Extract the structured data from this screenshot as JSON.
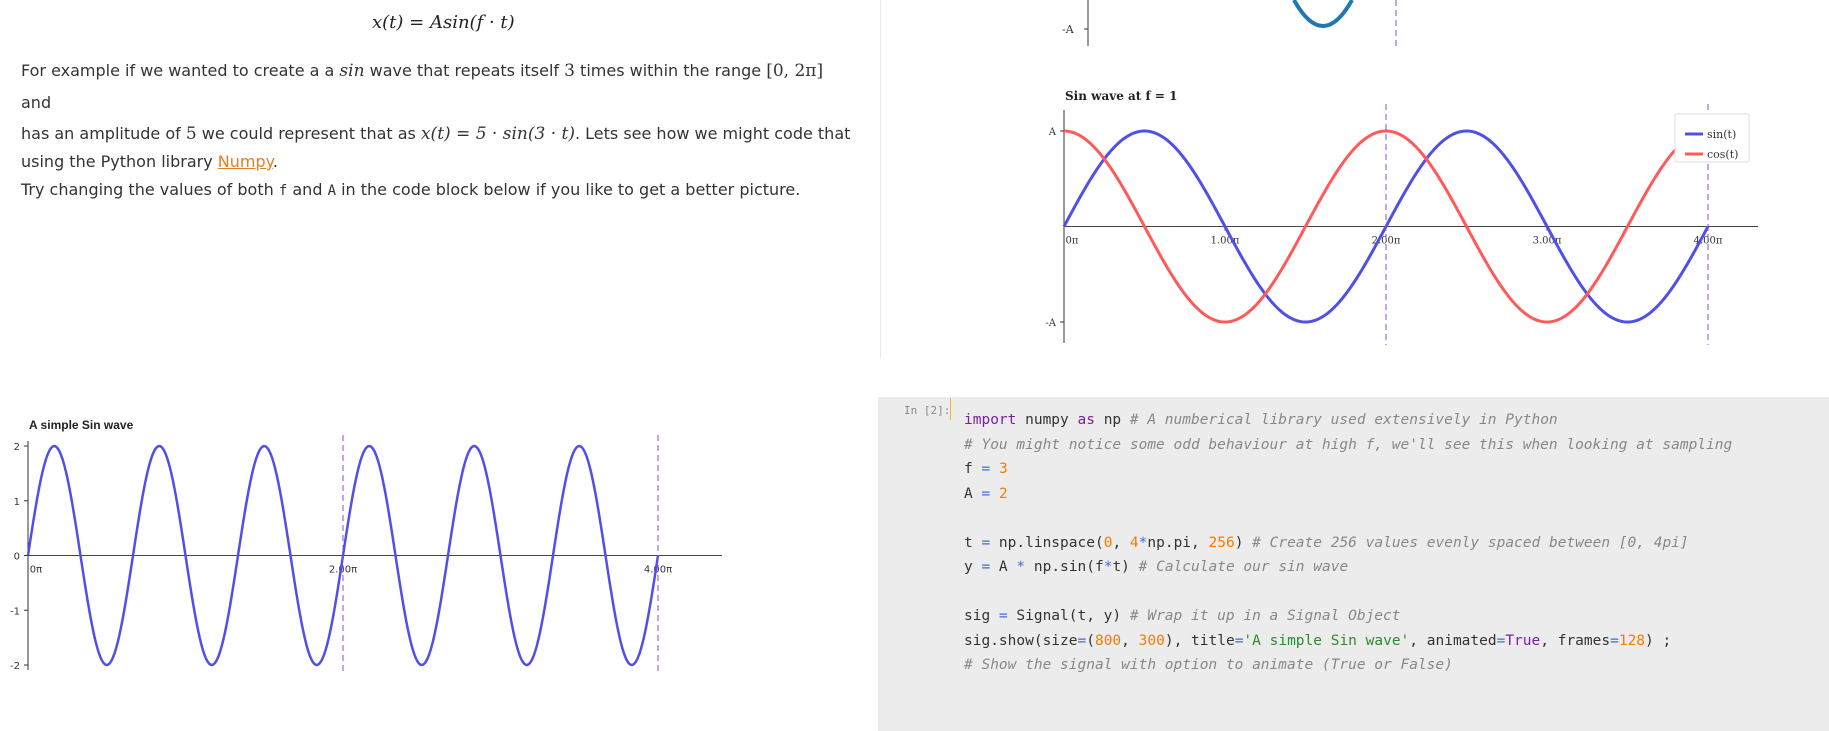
{
  "markdown": {
    "formula": "x(t) = Asin(f · t)",
    "para1": {
      "t1": "For example if we wanted to create a a ",
      "m1": "sin",
      "t2": " wave that repeats itself ",
      "m2": "3",
      "t3": " times within the range ",
      "m3": "[0, 2π]",
      "t4": " and",
      "t5": "has an amplitude of ",
      "m4": "5",
      "t6": " we could represent that as ",
      "m5": "x(t) = 5 · sin(3 · t)",
      "t7": ". Lets see how we might code that",
      "t8": "using the Python library ",
      "link": "Numpy",
      "t9": "."
    },
    "para2": {
      "t1": "Try changing the values of both ",
      "c1": "f",
      "t2": " and ",
      "c2": "A",
      "t3": " in the code block below if you like to get a better picture."
    }
  },
  "chart_data": [
    {
      "type": "line",
      "title": "Sin wave at f = 1",
      "xlabel": "",
      "ylabel": "",
      "x_ticks": [
        "0π",
        "1.00π",
        "2.00π",
        "3.00π",
        "4.00π"
      ],
      "y_ticks": [
        "A",
        "-A"
      ],
      "xlim_pi": [
        0,
        4
      ],
      "ylim": [
        -1,
        1
      ],
      "vertical_markers_pi": [
        2,
        4
      ],
      "legend_position": "top-right",
      "series": [
        {
          "name": "sin(t)",
          "function": "sin",
          "frequency": 1,
          "amplitude": 1,
          "color": "#5050e8"
        },
        {
          "name": "cos(t)",
          "function": "cos",
          "frequency": 1,
          "amplitude": 1,
          "color": "#ff5a5a"
        }
      ]
    },
    {
      "type": "line",
      "title": "A simple Sin wave",
      "xlabel": "",
      "ylabel": "",
      "x_ticks": [
        "0π",
        "2.00π",
        "4.00π"
      ],
      "y_ticks": [
        "2",
        "1",
        "0",
        "-1",
        "-2"
      ],
      "xlim_pi": [
        0,
        4
      ],
      "ylim": [
        -2,
        2
      ],
      "vertical_markers_pi": [
        2,
        4
      ],
      "series": [
        {
          "function": "sin",
          "frequency": 3,
          "amplitude": 2,
          "color": "#5050e8"
        }
      ]
    }
  ],
  "top_partial_chart": {
    "y_tick": "-A",
    "color": "#1f77b4"
  },
  "code_cell": {
    "prompt": "In [2]:"
  },
  "colors": {
    "sin": "#5050e8",
    "cos": "#ff5a5a",
    "marker": "#8a4fc7",
    "link": "#e67e22"
  }
}
